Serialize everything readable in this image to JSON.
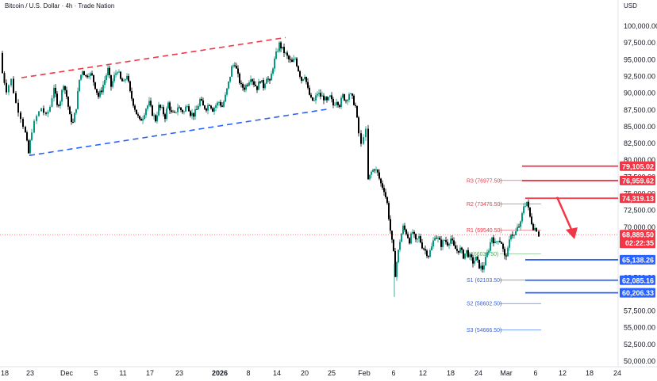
{
  "header": {
    "title": "Bitcoin / U.S. Dollar · 4h · Trade Nation",
    "currency": "USD"
  },
  "colors": {
    "up": "#089981",
    "down": "#000000",
    "resistance": "#f23645",
    "support": "#2962ff",
    "pivot_resistance_text": "#f23645",
    "pivot_support_text": "#2962ff",
    "pivot_text": "#4caf50",
    "projection_arrow": "#f23645"
  },
  "chart_data": {
    "type": "candlestick",
    "title": "Bitcoin / U.S. Dollar · 4h · Trade Nation",
    "ylabel": "USD",
    "ylim": [
      50000,
      102000
    ],
    "y_ticks": [
      50000,
      52500,
      55000,
      57500,
      60000,
      62500,
      65000,
      67500,
      70000,
      72500,
      75000,
      77500,
      80000,
      82500,
      85000,
      87500,
      90000,
      92500,
      95000,
      97500,
      100000
    ],
    "y_tick_labels": [
      "50,000.00",
      "52,500.00",
      "55,000.00",
      "57,500.00",
      "60,000.00",
      "62,500.00",
      "65,000.00",
      "67,500.00",
      "70,000.00",
      "72,500.00",
      "75,000.00",
      "77,500.00",
      "80,000.00",
      "82,500.00",
      "85,000.00",
      "87,500.00",
      "90,000.00",
      "92,500.00",
      "95,000.00",
      "97,500.00",
      "100,000.00"
    ],
    "x_ticks": [
      {
        "label": "18",
        "bold": false
      },
      {
        "label": "23",
        "bold": false
      },
      {
        "label": "Dec",
        "bold": false
      },
      {
        "label": "5",
        "bold": false
      },
      {
        "label": "11",
        "bold": false
      },
      {
        "label": "17",
        "bold": false
      },
      {
        "label": "23",
        "bold": false
      },
      {
        "label": "2026",
        "bold": true
      },
      {
        "label": "8",
        "bold": false
      },
      {
        "label": "14",
        "bold": false
      },
      {
        "label": "20",
        "bold": false
      },
      {
        "label": "25",
        "bold": false
      },
      {
        "label": "Feb",
        "bold": false
      },
      {
        "label": "6",
        "bold": false
      },
      {
        "label": "12",
        "bold": false
      },
      {
        "label": "18",
        "bold": false
      },
      {
        "label": "24",
        "bold": false
      },
      {
        "label": "Mar",
        "bold": false
      },
      {
        "label": "6",
        "bold": false
      },
      {
        "label": "12",
        "bold": false
      },
      {
        "label": "18",
        "bold": false
      },
      {
        "label": "24",
        "bold": false
      }
    ],
    "price_path": [
      [
        0,
        96000
      ],
      [
        3,
        93000
      ],
      [
        8,
        90500
      ],
      [
        14,
        92000
      ],
      [
        20,
        88500
      ],
      [
        26,
        86500
      ],
      [
        32,
        84000
      ],
      [
        36,
        81000
      ],
      [
        40,
        84500
      ],
      [
        46,
        86500
      ],
      [
        52,
        87800
      ],
      [
        58,
        86500
      ],
      [
        63,
        88000
      ],
      [
        68,
        91000
      ],
      [
        72,
        88000
      ],
      [
        76,
        89000
      ],
      [
        80,
        91500
      ],
      [
        84,
        89500
      ],
      [
        88,
        86500
      ],
      [
        92,
        85500
      ],
      [
        96,
        88000
      ],
      [
        100,
        92000
      ],
      [
        104,
        93500
      ],
      [
        108,
        92500
      ],
      [
        112,
        93000
      ],
      [
        116,
        92500
      ],
      [
        120,
        91000
      ],
      [
        124,
        89500
      ],
      [
        128,
        90500
      ],
      [
        132,
        92000
      ],
      [
        136,
        93500
      ],
      [
        140,
        91000
      ],
      [
        144,
        92500
      ],
      [
        148,
        93500
      ],
      [
        152,
        92000
      ],
      [
        156,
        91500
      ],
      [
        160,
        92800
      ],
      [
        164,
        90000
      ],
      [
        168,
        88500
      ],
      [
        172,
        87000
      ],
      [
        176,
        85800
      ],
      [
        180,
        86500
      ],
      [
        184,
        87800
      ],
      [
        188,
        88500
      ],
      [
        192,
        87000
      ],
      [
        196,
        86000
      ],
      [
        200,
        88000
      ],
      [
        204,
        87500
      ],
      [
        208,
        86500
      ],
      [
        212,
        88500
      ],
      [
        216,
        87000
      ],
      [
        220,
        86800
      ],
      [
        224,
        88000
      ],
      [
        228,
        87500
      ],
      [
        232,
        87200
      ],
      [
        236,
        88500
      ],
      [
        240,
        87000
      ],
      [
        244,
        86800
      ],
      [
        248,
        87500
      ],
      [
        252,
        89000
      ],
      [
        256,
        88000
      ],
      [
        260,
        87800
      ],
      [
        264,
        88500
      ],
      [
        268,
        87600
      ],
      [
        272,
        88200
      ],
      [
        276,
        88700
      ],
      [
        280,
        88000
      ],
      [
        284,
        89500
      ],
      [
        288,
        91500
      ],
      [
        292,
        93800
      ],
      [
        296,
        94500
      ],
      [
        300,
        92500
      ],
      [
        304,
        91000
      ],
      [
        308,
        90800
      ],
      [
        312,
        91500
      ],
      [
        316,
        92500
      ],
      [
        320,
        91500
      ],
      [
        324,
        90800
      ],
      [
        328,
        92000
      ],
      [
        332,
        91000
      ],
      [
        336,
        92500
      ],
      [
        340,
        91500
      ],
      [
        344,
        94000
      ],
      [
        348,
        95800
      ],
      [
        352,
        97300
      ],
      [
        356,
        96500
      ],
      [
        360,
        95800
      ],
      [
        364,
        95000
      ],
      [
        368,
        94500
      ],
      [
        372,
        95200
      ],
      [
        376,
        93500
      ],
      [
        380,
        92000
      ],
      [
        384,
        92800
      ],
      [
        388,
        90500
      ],
      [
        392,
        89000
      ],
      [
        396,
        88800
      ],
      [
        400,
        90000
      ],
      [
        404,
        89600
      ],
      [
        408,
        89300
      ],
      [
        412,
        88700
      ],
      [
        416,
        89400
      ],
      [
        420,
        88200
      ],
      [
        424,
        89000
      ],
      [
        428,
        88300
      ],
      [
        432,
        89600
      ],
      [
        436,
        88900
      ],
      [
        440,
        90000
      ],
      [
        444,
        89200
      ],
      [
        448,
        88000
      ],
      [
        452,
        84000
      ],
      [
        455,
        82200
      ],
      [
        458,
        83800
      ],
      [
        461,
        84300
      ],
      [
        464,
        77000
      ],
      [
        468,
        78200
      ],
      [
        472,
        78800
      ],
      [
        476,
        78000
      ],
      [
        480,
        76500
      ],
      [
        484,
        75600
      ],
      [
        488,
        73500
      ],
      [
        492,
        69500
      ],
      [
        496,
        66000
      ],
      [
        498,
        63000
      ],
      [
        500,
        64800
      ],
      [
        504,
        68000
      ],
      [
        508,
        70000
      ],
      [
        512,
        69200
      ],
      [
        516,
        68000
      ],
      [
        520,
        69300
      ],
      [
        524,
        67800
      ],
      [
        528,
        68500
      ],
      [
        532,
        67200
      ],
      [
        536,
        66500
      ],
      [
        540,
        65800
      ],
      [
        544,
        67000
      ],
      [
        548,
        68800
      ],
      [
        552,
        68200
      ],
      [
        556,
        67400
      ],
      [
        560,
        68100
      ],
      [
        564,
        67600
      ],
      [
        568,
        68300
      ],
      [
        572,
        67000
      ],
      [
        576,
        66500
      ],
      [
        580,
        66700
      ],
      [
        584,
        65700
      ],
      [
        588,
        66400
      ],
      [
        592,
        65500
      ],
      [
        596,
        64800
      ],
      [
        600,
        65300
      ],
      [
        604,
        64200
      ],
      [
        608,
        63800
      ],
      [
        612,
        65200
      ],
      [
        616,
        66800
      ],
      [
        620,
        68600
      ],
      [
        624,
        67500
      ],
      [
        628,
        68300
      ],
      [
        632,
        67700
      ],
      [
        636,
        65500
      ],
      [
        640,
        66500
      ],
      [
        644,
        69200
      ],
      [
        648,
        68700
      ],
      [
        652,
        69800
      ],
      [
        656,
        70500
      ],
      [
        660,
        73200
      ],
      [
        664,
        73800
      ],
      [
        668,
        71500
      ],
      [
        672,
        70000
      ],
      [
        676,
        69700
      ],
      [
        679,
        68889
      ]
    ],
    "channel_upper": {
      "from": [
        27,
        92300
      ],
      "to": [
        360,
        98300
      ],
      "label": ""
    },
    "channel_lower": {
      "from": [
        37,
        80700
      ],
      "to": [
        412,
        87600
      ],
      "label": ""
    },
    "pivots": [
      {
        "label": "R3 (76977.50)",
        "value": 76977.5,
        "kind": "resistance",
        "x_from": 630,
        "x_to": 682
      },
      {
        "label": "R2 (73476.50)",
        "value": 73476.5,
        "kind": "resistance",
        "x_from": 630,
        "x_to": 682
      },
      {
        "label": "R1 (69540.50)",
        "value": 69540.5,
        "kind": "resistance",
        "x_from": 630,
        "x_to": 682
      },
      {
        "label": "P (66039.50)",
        "value": 66039.5,
        "kind": "pivot",
        "x_from": 630,
        "x_to": 682
      },
      {
        "label": "S1 (62103.50)",
        "value": 62103.5,
        "kind": "support",
        "x_from": 630,
        "x_to": 682
      },
      {
        "label": "S2 (58602.50)",
        "value": 58602.5,
        "kind": "support",
        "x_from": 630,
        "x_to": 682
      },
      {
        "label": "S3 (54666.50)",
        "value": 54666.5,
        "kind": "support",
        "x_from": 630,
        "x_to": 682
      }
    ],
    "levels": [
      {
        "value": 79105.02,
        "label": "79,105.02",
        "kind": "resistance",
        "x_from": 658
      },
      {
        "value": 76959.62,
        "label": "76,959.62",
        "kind": "resistance",
        "x_from": 658
      },
      {
        "value": 74319.13,
        "label": "74,319.13",
        "kind": "resistance",
        "x_from": 662
      },
      {
        "value": 65138.26,
        "label": "65,138.26",
        "kind": "support",
        "x_from": 662
      },
      {
        "value": 62085.16,
        "label": "62,085.16",
        "kind": "support",
        "x_from": 662
      },
      {
        "value": 60206.33,
        "label": "60,206.33",
        "kind": "support",
        "x_from": 662
      }
    ],
    "current_price": {
      "value": 68889.5,
      "label": "68,889.50",
      "countdown": "02:22:35"
    },
    "projection_arrow": {
      "from": [
        702,
        74500
      ],
      "to": [
        724,
        68200
      ]
    }
  }
}
